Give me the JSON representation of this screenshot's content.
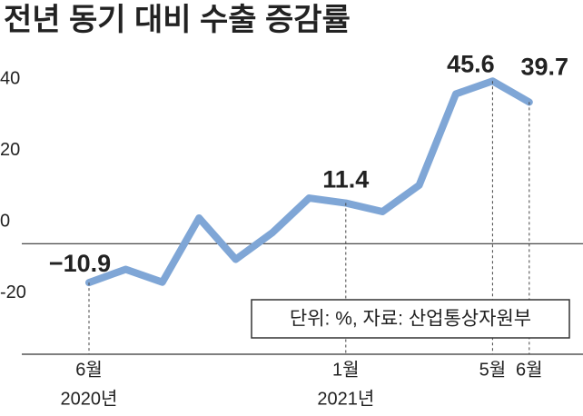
{
  "chart_data": {
    "type": "line",
    "title": "전년 동기 대비 수출 증감률",
    "categories": [
      "6월",
      null,
      null,
      null,
      null,
      null,
      null,
      "1월",
      null,
      null,
      null,
      "5월",
      "6월"
    ],
    "year_labels": [
      "2020년",
      null,
      null,
      null,
      null,
      null,
      null,
      "2021년",
      null,
      null,
      null,
      null,
      null
    ],
    "series": [
      {
        "name": "수출 증감률",
        "color": "#7fa6d6",
        "values": [
          -10.9,
          -7.2,
          -10.8,
          7.2,
          -4.4,
          3.1,
          12.8,
          11.4,
          9.0,
          16.4,
          42.0,
          45.6,
          39.7
        ],
        "value_labels": [
          "−10.9",
          null,
          null,
          null,
          null,
          null,
          null,
          "11.4",
          null,
          null,
          null,
          "45.6",
          "39.7"
        ]
      }
    ],
    "ylim": [
      -31,
      50
    ],
    "yticks": [
      -20,
      0,
      20,
      40
    ],
    "note": "단위: %, 자료: 산업통상자원부"
  }
}
